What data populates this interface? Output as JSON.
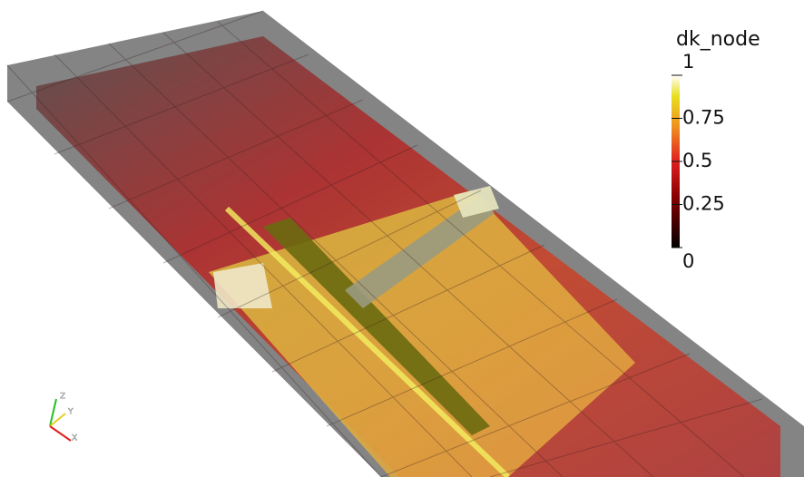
{
  "legend": {
    "title": "dk_node",
    "ticks": [
      1,
      0.75,
      0.5,
      0.25,
      0
    ]
  },
  "axes": {
    "z": "Z",
    "y": "Y",
    "x": "X"
  }
}
